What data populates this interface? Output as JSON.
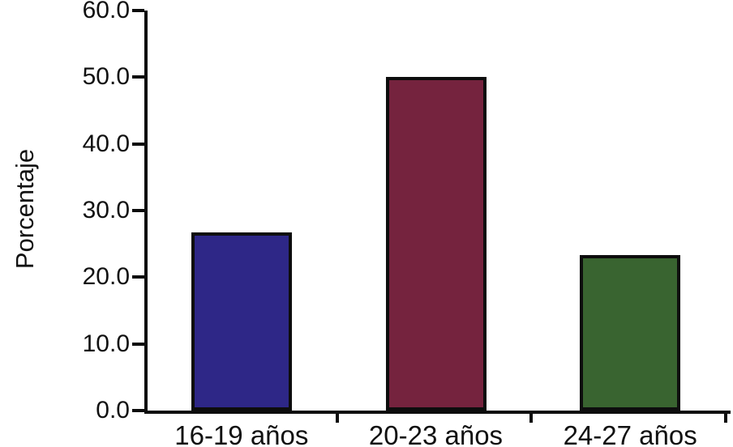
{
  "chart_data": {
    "type": "bar",
    "title": "",
    "categories": [
      "16-19 años",
      "20-23 años",
      "24-27 años"
    ],
    "values": [
      26.7,
      50.0,
      23.3
    ],
    "bar_colors": [
      "#2E2787",
      "#75233E",
      "#396430"
    ],
    "bar_border_color": "#0d0d0d",
    "xlabel": "",
    "ylabel": "Porcentaje",
    "ylim": [
      0,
      60
    ],
    "yticks": [
      0,
      10,
      20,
      30,
      40,
      50,
      60
    ],
    "ytick_labels": [
      "0.0",
      "10.0",
      "20.0",
      "30.0",
      "40.0",
      "50.0",
      "60.0"
    ],
    "grid": false,
    "legend": "none",
    "axis_color": "#0d0d0d",
    "background_color": "#ffffff"
  }
}
